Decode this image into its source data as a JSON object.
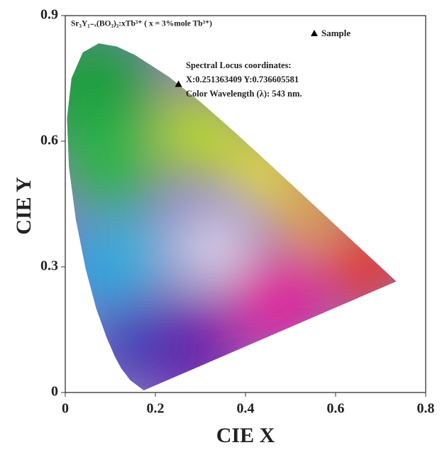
{
  "chart_data": {
    "type": "scatter",
    "title": "Sr₃Y₁₋ₓ(BO₃)₃:xTb³⁺  ( x = 3%mole Tb³⁺)",
    "x_label": "CIE X",
    "y_label": "CIE Y",
    "annotations": [
      "Spectral Locus  coordinates:",
      "X:0.251363409 Y:0.736605581",
      "Color Wavelength (λ): 543 nm."
    ],
    "series": [
      {
        "name": "Sample",
        "color": "#000000",
        "x": [
          0.251363409
        ],
        "values": [
          0.736605581
        ]
      }
    ],
    "xlim": [
      0,
      0.8
    ],
    "xticks": [
      0,
      0.2,
      0.4,
      0.6,
      0.8
    ],
    "ylim": [
      0,
      0.9
    ],
    "yticks": [
      0,
      0.3,
      0.6,
      0.9
    ],
    "legend": "upper right",
    "grid": false
  }
}
